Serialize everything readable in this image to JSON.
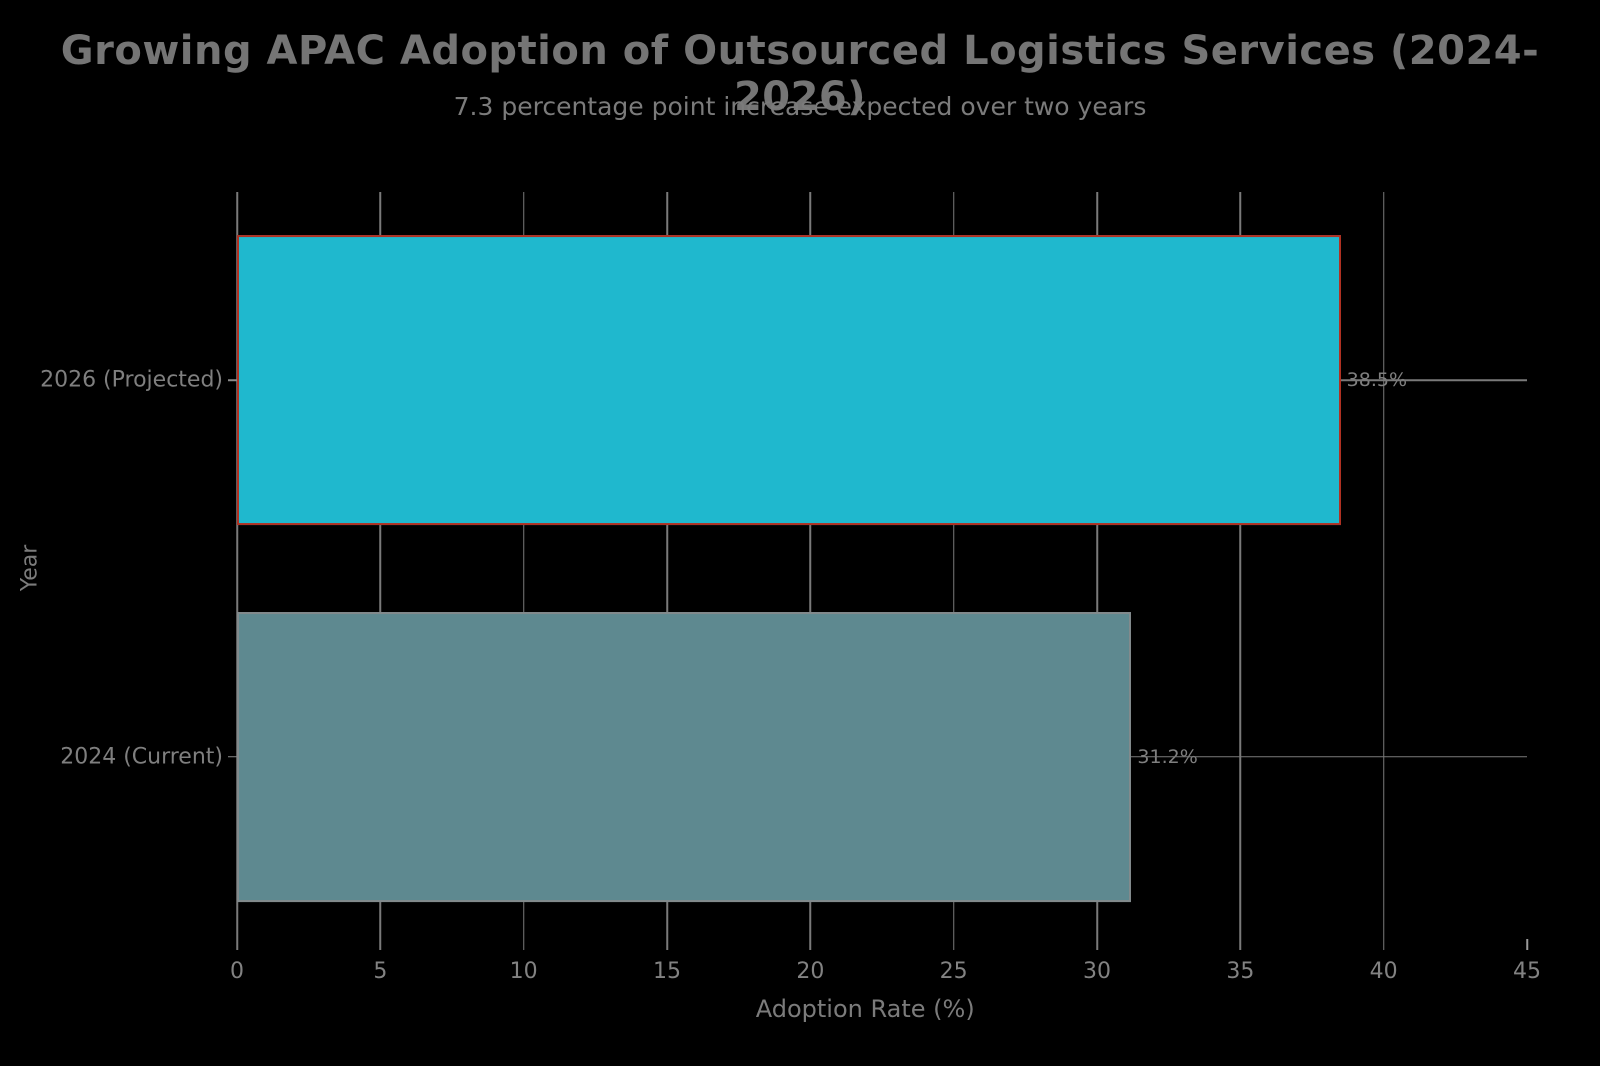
{
  "page": {
    "background": "#000000"
  },
  "header": {
    "title": "Growing APAC Adoption of Outsourced Logistics Services (2024-2026)",
    "subtitle": "7.3 percentage point increase expected over two years"
  },
  "chart_data": {
    "type": "bar",
    "orientation": "horizontal",
    "title": "Growing APAC Adoption of Outsourced Logistics Services (2024-2026)",
    "subtitle": "7.3 percentage point increase expected over two years",
    "categories": [
      "2026 (Projected)",
      "2024 (Current)"
    ],
    "values": [
      38.5,
      31.2
    ],
    "value_labels": [
      "38.5%",
      "31.2%"
    ],
    "xlabel": "Adoption Rate (%)",
    "ylabel": "Year",
    "xlim": [
      0,
      45
    ],
    "xticks": [
      0,
      5,
      10,
      15,
      20,
      25,
      30,
      35,
      40,
      45
    ],
    "grid": true,
    "legend": false,
    "bar_height_fraction": 0.77,
    "colors": {
      "background": "#000000",
      "bar_fills": [
        "#1FB8CE",
        "#5E8990"
      ],
      "bar_edges": [
        "#B03122",
        "#828A8C"
      ],
      "grid": "#7a7a7a",
      "text": "#7f7f7f",
      "title_text": "#757575"
    }
  }
}
